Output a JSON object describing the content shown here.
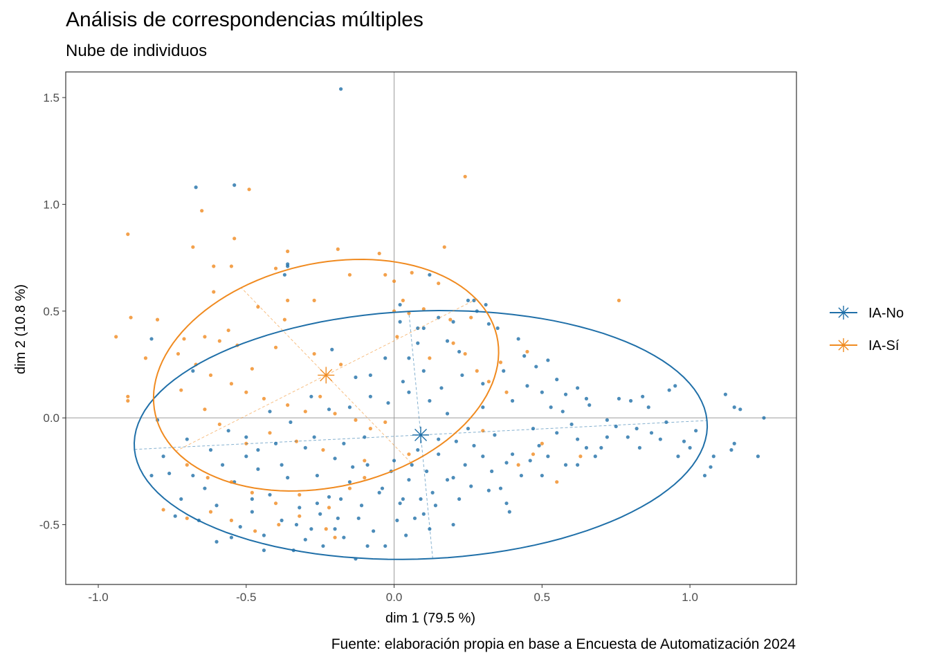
{
  "chart_data": {
    "type": "scatter",
    "title": "Análisis de correspondencias múltiples",
    "subtitle": "Nube de individuos",
    "caption": "Fuente: elaboración propia en base a Encuesta de Automatización 2024",
    "xlabel": "dim 1 (79.5 %)",
    "ylabel": "dim 2 (10.8 %)",
    "xlim": [
      -1.11,
      1.36
    ],
    "ylim": [
      -0.78,
      1.62
    ],
    "x_ticks": [
      -1.0,
      -0.5,
      0.0,
      0.5,
      1.0
    ],
    "x_tick_labels": [
      "-1.0",
      "-0.5",
      "0.0",
      "0.5",
      "1.0"
    ],
    "y_ticks": [
      -0.5,
      0.0,
      0.5,
      1.0,
      1.5
    ],
    "y_tick_labels": [
      "-0.5",
      "0.0",
      "0.5",
      "1.0",
      "1.5"
    ],
    "reference_lines": {
      "x": 0,
      "y": 0
    },
    "grid": false,
    "legend_position": "right",
    "colors": {
      "IA-No": "#1f6fa8",
      "IA-Sí": "#f08a1f"
    },
    "series": [
      {
        "name": "IA-No",
        "color": "#1f6fa8",
        "centroid": {
          "x": 0.09,
          "y": -0.08
        },
        "ellipse": {
          "cx": 0.09,
          "cy": -0.08,
          "a": 0.97,
          "b": 0.58,
          "angle_deg": 4
        },
        "points": [
          [
            -0.18,
            1.54
          ],
          [
            -0.67,
            1.08
          ],
          [
            -0.54,
            1.09
          ],
          [
            -0.36,
            0.71
          ],
          [
            -0.36,
            0.72
          ],
          [
            -0.37,
            0.67
          ],
          [
            0.12,
            0.67
          ],
          [
            0.27,
            0.55
          ],
          [
            0.25,
            0.55
          ],
          [
            0.31,
            0.53
          ],
          [
            0.02,
            0.53
          ],
          [
            0.02,
            0.45
          ],
          [
            -0.82,
            0.37
          ],
          [
            -0.21,
            0.32
          ],
          [
            -0.68,
            0.22
          ],
          [
            -0.13,
            0.19
          ],
          [
            0.08,
            0.35
          ],
          [
            0.08,
            0.42
          ],
          [
            0.05,
            0.28
          ],
          [
            0.18,
            0.36
          ],
          [
            0.22,
            0.31
          ],
          [
            0.35,
            0.42
          ],
          [
            0.42,
            0.37
          ],
          [
            0.44,
            0.29
          ],
          [
            0.48,
            0.24
          ],
          [
            0.52,
            0.27
          ],
          [
            0.55,
            0.18
          ],
          [
            0.62,
            0.14
          ],
          [
            0.65,
            0.09
          ],
          [
            0.57,
            0.03
          ],
          [
            0.72,
            -0.01
          ],
          [
            0.76,
            0.09
          ],
          [
            0.8,
            0.08
          ],
          [
            0.86,
            0.05
          ],
          [
            0.93,
            0.13
          ],
          [
            0.95,
            0.15
          ],
          [
            0.84,
            0.1
          ],
          [
            1.12,
            0.11
          ],
          [
            1.15,
            0.05
          ],
          [
            1.17,
            0.04
          ],
          [
            1.25,
            0
          ],
          [
            1.08,
            -0.18
          ],
          [
            1.07,
            -0.23
          ],
          [
            1.05,
            -0.27
          ],
          [
            1.15,
            -0.12
          ],
          [
            1.14,
            -0.15
          ],
          [
            1.23,
            -0.18
          ],
          [
            0.98,
            -0.11
          ],
          [
            1.0,
            -0.14
          ],
          [
            0.96,
            -0.18
          ],
          [
            0.9,
            -0.1
          ],
          [
            0.87,
            -0.07
          ],
          [
            0.83,
            -0.14
          ],
          [
            0.79,
            -0.09
          ],
          [
            0.75,
            -0.04
          ],
          [
            0.72,
            -0.09
          ],
          [
            0.68,
            -0.18
          ],
          [
            0.65,
            -0.14
          ],
          [
            0.62,
            -0.1
          ],
          [
            0.6,
            -0.03
          ],
          [
            0.55,
            -0.07
          ],
          [
            0.52,
            -0.18
          ],
          [
            0.49,
            -0.13
          ],
          [
            0.46,
            -0.2
          ],
          [
            0.43,
            -0.27
          ],
          [
            0.38,
            -0.21
          ],
          [
            0.36,
            -0.33
          ],
          [
            0.33,
            -0.25
          ],
          [
            0.3,
            -0.18
          ],
          [
            0.27,
            -0.13
          ],
          [
            0.24,
            -0.22
          ],
          [
            0.21,
            -0.11
          ],
          [
            0.18,
            -0.29
          ],
          [
            0.15,
            -0.17
          ],
          [
            0.13,
            -0.35
          ],
          [
            0.11,
            -0.25
          ],
          [
            0.09,
            -0.38
          ],
          [
            0.08,
            -0.15
          ],
          [
            0.07,
            -0.47
          ],
          [
            0.05,
            -0.29
          ],
          [
            0.03,
            -0.38
          ],
          [
            0.01,
            -0.48
          ],
          [
            -0.01,
            -0.25
          ],
          [
            -0.03,
            -0.6
          ],
          [
            -0.05,
            -0.35
          ],
          [
            -0.07,
            -0.53
          ],
          [
            -0.09,
            -0.22
          ],
          [
            -0.11,
            -0.41
          ],
          [
            -0.13,
            -0.66
          ],
          [
            -0.15,
            -0.3
          ],
          [
            -0.17,
            -0.56
          ],
          [
            -0.19,
            -0.47
          ],
          [
            -0.2,
            -0.19
          ],
          [
            -0.22,
            -0.37
          ],
          [
            -0.24,
            -0.6
          ],
          [
            -0.26,
            -0.27
          ],
          [
            -0.28,
            -0.52
          ],
          [
            -0.3,
            -0.14
          ],
          [
            -0.32,
            -0.42
          ],
          [
            -0.34,
            -0.62
          ],
          [
            -0.36,
            -0.28
          ],
          [
            -0.38,
            -0.48
          ],
          [
            -0.4,
            -0.12
          ],
          [
            -0.42,
            -0.36
          ],
          [
            -0.44,
            -0.55
          ],
          [
            -0.46,
            -0.24
          ],
          [
            -0.48,
            -0.44
          ],
          [
            -0.5,
            -0.18
          ],
          [
            -0.52,
            -0.51
          ],
          [
            -0.54,
            -0.3
          ],
          [
            -0.56,
            -0.06
          ],
          [
            -0.58,
            -0.22
          ],
          [
            -0.6,
            -0.41
          ],
          [
            -0.62,
            -0.15
          ],
          [
            -0.64,
            -0.33
          ],
          [
            -0.66,
            -0.48
          ],
          [
            -0.68,
            -0.27
          ],
          [
            -0.7,
            -0.1
          ],
          [
            -0.72,
            -0.38
          ],
          [
            -0.74,
            -0.46
          ],
          [
            -0.76,
            -0.26
          ],
          [
            -0.78,
            -0.18
          ],
          [
            -0.8,
            -0.01
          ],
          [
            -0.82,
            -0.27
          ],
          [
            -0.55,
            -0.56
          ],
          [
            -0.48,
            -0.38
          ],
          [
            -0.3,
            -0.57
          ],
          [
            -0.2,
            -0.52
          ],
          [
            -0.12,
            -0.47
          ],
          [
            0.02,
            -0.4
          ],
          [
            0.1,
            -0.45
          ],
          [
            0.2,
            -0.28
          ],
          [
            0.26,
            -0.32
          ],
          [
            0.4,
            -0.17
          ],
          [
            0.5,
            -0.27
          ],
          [
            0.58,
            -0.22
          ],
          [
            0.7,
            -0.14
          ],
          [
            0.62,
            -0.22
          ],
          [
            0.47,
            -0.05
          ],
          [
            0.34,
            -0.08
          ],
          [
            0.25,
            -0.05
          ],
          [
            0.18,
            0.02
          ],
          [
            0.12,
            0.08
          ],
          [
            0.05,
            0.12
          ],
          [
            -0.02,
            0.07
          ],
          [
            -0.08,
            0.1
          ],
          [
            -0.15,
            0.05
          ],
          [
            -0.22,
            0.04
          ],
          [
            -0.28,
            0.1
          ],
          [
            -0.35,
            -0.02
          ],
          [
            -0.42,
            0.03
          ],
          [
            -0.5,
            -0.09
          ],
          [
            -0.27,
            -0.09
          ],
          [
            -0.17,
            -0.12
          ],
          [
            -0.1,
            -0.09
          ],
          [
            0.0,
            -0.2
          ],
          [
            0.15,
            -0.1
          ],
          [
            0.3,
            0.05
          ],
          [
            0.4,
            0.08
          ],
          [
            0.5,
            0.12
          ],
          [
            0.58,
            0.11
          ],
          [
            0.66,
            0.06
          ],
          [
            0.82,
            -0.05
          ],
          [
            0.92,
            -0.02
          ],
          [
            1.02,
            -0.06
          ],
          [
            0.1,
            0.42
          ],
          [
            0.15,
            0.47
          ],
          [
            0.2,
            0.45
          ],
          [
            0.28,
            0.5
          ],
          [
            0.32,
            0.44
          ],
          [
            -0.08,
            0.2
          ],
          [
            -0.03,
            0.28
          ],
          [
            0.03,
            0.17
          ],
          [
            0.1,
            0.22
          ],
          [
            0.16,
            0.14
          ],
          [
            0.23,
            0.2
          ],
          [
            0.3,
            0.16
          ],
          [
            0.37,
            0.22
          ],
          [
            0.45,
            0.15
          ],
          [
            0.53,
            0.05
          ],
          [
            -0.46,
            -0.15
          ],
          [
            -0.38,
            -0.22
          ],
          [
            -0.26,
            -0.4
          ],
          [
            -0.14,
            -0.23
          ],
          [
            -0.04,
            -0.33
          ],
          [
            0.06,
            -0.22
          ],
          [
            0.14,
            -0.41
          ],
          [
            0.22,
            -0.38
          ],
          [
            0.32,
            -0.34
          ],
          [
            0.38,
            -0.4
          ],
          [
            -0.6,
            -0.58
          ],
          [
            -0.44,
            -0.62
          ],
          [
            -0.33,
            -0.5
          ],
          [
            -0.25,
            -0.45
          ],
          [
            -0.18,
            -0.38
          ],
          [
            -0.09,
            -0.6
          ],
          [
            0.04,
            -0.55
          ],
          [
            0.12,
            -0.52
          ],
          [
            0.2,
            -0.5
          ],
          [
            0.39,
            -0.44
          ]
        ]
      },
      {
        "name": "IA-Sí",
        "color": "#f08a1f",
        "centroid": {
          "x": -0.23,
          "y": 0.2
        },
        "ellipse": {
          "cx": -0.23,
          "cy": 0.2,
          "a": 0.62,
          "b": 0.5,
          "angle_deg": 35
        },
        "points": [
          [
            -0.9,
            0.86
          ],
          [
            -0.65,
            0.97
          ],
          [
            -0.49,
            1.07
          ],
          [
            0.24,
            1.13
          ],
          [
            -0.68,
            0.8
          ],
          [
            -0.54,
            0.84
          ],
          [
            -0.36,
            0.78
          ],
          [
            -0.19,
            0.79
          ],
          [
            0.17,
            0.8
          ],
          [
            -0.05,
            0.77
          ],
          [
            -0.61,
            0.71
          ],
          [
            -0.55,
            0.71
          ],
          [
            -0.4,
            0.7
          ],
          [
            -0.15,
            0.67
          ],
          [
            -0.03,
            0.67
          ],
          [
            0.0,
            0.64
          ],
          [
            0.06,
            0.68
          ],
          [
            0.15,
            0.63
          ],
          [
            -0.61,
            0.59
          ],
          [
            -0.46,
            0.52
          ],
          [
            -0.36,
            0.55
          ],
          [
            -0.27,
            0.55
          ],
          [
            0.0,
            0.5
          ],
          [
            0.05,
            0.49
          ],
          [
            0.19,
            0.46
          ],
          [
            0.26,
            0.47
          ],
          [
            0.76,
            0.55
          ],
          [
            -0.89,
            0.47
          ],
          [
            -0.8,
            0.46
          ],
          [
            -0.94,
            0.38
          ],
          [
            -0.71,
            0.37
          ],
          [
            -0.64,
            0.38
          ],
          [
            -0.59,
            0.36
          ],
          [
            -0.53,
            0.34
          ],
          [
            -0.4,
            0.33
          ],
          [
            -0.27,
            0.3
          ],
          [
            -0.18,
            0.25
          ],
          [
            0.01,
            0.38
          ],
          [
            0.12,
            0.28
          ],
          [
            0.2,
            0.35
          ],
          [
            0.24,
            0.3
          ],
          [
            0.36,
            0.26
          ],
          [
            0.45,
            0.31
          ],
          [
            -0.73,
            0.3
          ],
          [
            -0.67,
            0.25
          ],
          [
            -0.62,
            0.2
          ],
          [
            -0.55,
            0.16
          ],
          [
            -0.5,
            0.12
          ],
          [
            -0.44,
            0.09
          ],
          [
            -0.36,
            0.06
          ],
          [
            -0.3,
            0.03
          ],
          [
            -0.25,
            0.1
          ],
          [
            -0.2,
            0.02
          ],
          [
            -0.13,
            -0.01
          ],
          [
            -0.08,
            -0.05
          ],
          [
            -0.03,
            -0.02
          ],
          [
            0.28,
            0.22
          ],
          [
            0.32,
            0.17
          ],
          [
            0.38,
            0.12
          ],
          [
            -0.9,
            0.1
          ],
          [
            -0.9,
            0.08
          ],
          [
            -0.64,
            0.04
          ],
          [
            -0.59,
            -0.03
          ],
          [
            -0.5,
            -0.12
          ],
          [
            -0.42,
            -0.07
          ],
          [
            -0.33,
            -0.11
          ],
          [
            -0.24,
            -0.15
          ],
          [
            -0.1,
            -0.2
          ],
          [
            0.05,
            -0.17
          ],
          [
            0.47,
            -0.17
          ],
          [
            0.5,
            -0.12
          ],
          [
            0.63,
            -0.18
          ],
          [
            -0.7,
            -0.22
          ],
          [
            -0.63,
            -0.28
          ],
          [
            -0.55,
            -0.3
          ],
          [
            -0.48,
            -0.35
          ],
          [
            -0.4,
            -0.4
          ],
          [
            -0.32,
            -0.36
          ],
          [
            -0.22,
            -0.42
          ],
          [
            -0.15,
            -0.33
          ],
          [
            -0.78,
            -0.43
          ],
          [
            -0.7,
            -0.47
          ],
          [
            -0.62,
            -0.44
          ],
          [
            -0.55,
            -0.48
          ],
          [
            -0.47,
            -0.53
          ],
          [
            -0.39,
            -0.5
          ],
          [
            -0.32,
            -0.46
          ],
          [
            -0.23,
            -0.52
          ],
          [
            -0.2,
            -0.56
          ],
          [
            0.55,
            -0.3
          ],
          [
            0.42,
            -0.22
          ],
          [
            -0.1,
            -0.28
          ],
          [
            -0.37,
            0.46
          ],
          [
            0.1,
            0.51
          ],
          [
            -0.72,
            0.13
          ],
          [
            0.3,
            -0.06
          ],
          [
            -0.48,
            0.23
          ],
          [
            -0.56,
            0.41
          ],
          [
            0.03,
            0.55
          ],
          [
            -0.84,
            0.28
          ]
        ]
      }
    ]
  }
}
